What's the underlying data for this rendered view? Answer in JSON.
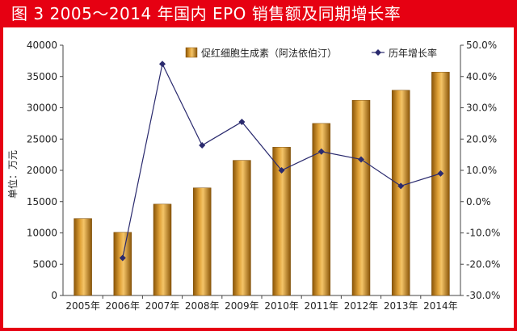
{
  "chart_data": {
    "type": "bar",
    "title": "图 3  2005～2014 年国内 EPO 销售额及同期增长率",
    "ylabel": "单位：万元",
    "categories": [
      "2005年",
      "2006年",
      "2007年",
      "2008年",
      "2009年",
      "2010年",
      "2011年",
      "2012年",
      "2013年",
      "2014年"
    ],
    "ylim": [
      0,
      40000
    ],
    "y_ticks": [
      "0",
      "5000",
      "10000",
      "15000",
      "20000",
      "25000",
      "30000",
      "35000",
      "40000"
    ],
    "y2lim": [
      -30,
      50
    ],
    "y2_ticks": [
      "-30.0%",
      "-20.0%",
      "-10.0%",
      "0.0%",
      "10.0%",
      "20.0%",
      "30.0%",
      "40.0%",
      "50.0%"
    ],
    "legend_position": "top",
    "series": [
      {
        "name": "促红细胞生成素（阿法依伯汀）",
        "type": "bar",
        "axis": "left",
        "color": "#c8891c",
        "values": [
          12300,
          10100,
          14600,
          17200,
          21600,
          23700,
          27500,
          31200,
          32800,
          35700
        ]
      },
      {
        "name": "历年增长率",
        "type": "line",
        "axis": "right",
        "color": "#2a2a6e",
        "values": [
          null,
          -18.0,
          44.0,
          18.0,
          25.5,
          10.0,
          16.0,
          13.5,
          5.0,
          9.0
        ]
      }
    ]
  }
}
